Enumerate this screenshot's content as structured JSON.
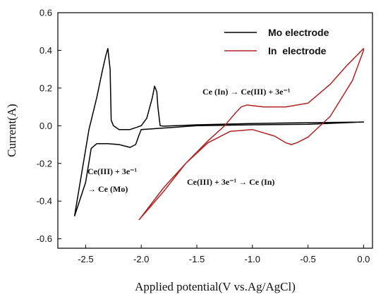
{
  "chart_data": {
    "type": "line",
    "xlabel": "Applied potential(V vs.Ag/AgCl)",
    "ylabel": "Current(A)",
    "xlim": [
      -2.75,
      0.08
    ],
    "ylim": [
      -0.65,
      0.6
    ],
    "xticks": [
      -2.5,
      -2.0,
      -1.5,
      -1.0,
      -0.5,
      0.0
    ],
    "xtick_labels": [
      "-2.5",
      "-2.0",
      "-1.5",
      "-1.0",
      "-0.5",
      "0.0"
    ],
    "yticks": [
      -0.6,
      -0.4,
      -0.2,
      0.0,
      0.2,
      0.4,
      0.6
    ],
    "ytick_labels": [
      "-0.6",
      "-0.4",
      "-0.2",
      "0.0",
      "0.2",
      "0.4",
      "0.6"
    ],
    "grid": false,
    "legend_position": "top-right",
    "series": [
      {
        "name": "Mo electrode",
        "color": "#000000",
        "x": [
          -2.6,
          -2.47,
          -2.4,
          -2.35,
          -2.32,
          -2.3,
          -2.28,
          -2.27,
          -2.25,
          -2.2,
          -2.1,
          -2.0,
          -1.95,
          -1.9,
          -1.88,
          -1.86,
          -1.85,
          -1.83,
          -1.8,
          -1.5,
          -1.0,
          -0.5,
          0.0,
          0.0,
          -0.5,
          -1.0,
          -1.5,
          -2.0,
          -2.02,
          -2.05,
          -2.1,
          -2.2,
          -2.3,
          -2.4,
          -2.45,
          -2.5,
          -2.6
        ],
        "y": [
          -0.48,
          -0.02,
          0.15,
          0.29,
          0.37,
          0.41,
          0.3,
          0.03,
          0.0,
          -0.02,
          -0.02,
          0.0,
          0.04,
          0.15,
          0.21,
          0.18,
          0.1,
          0.0,
          -0.002,
          0.005,
          0.012,
          0.016,
          0.02,
          0.02,
          0.008,
          0.005,
          0.0,
          -0.02,
          -0.05,
          -0.1,
          -0.115,
          -0.1,
          -0.095,
          -0.095,
          -0.12,
          -0.3,
          -0.48
        ]
      },
      {
        "name": "In  electrode",
        "color": "#b22222",
        "x": [
          -2.02,
          -1.8,
          -1.6,
          -1.4,
          -1.25,
          -1.15,
          -1.1,
          -1.05,
          -0.9,
          -0.7,
          -0.5,
          -0.3,
          -0.15,
          0.0,
          0.0,
          -0.1,
          -0.3,
          -0.5,
          -0.6,
          -0.65,
          -0.7,
          -0.8,
          -1.0,
          -1.2,
          -1.4,
          -1.6,
          -1.8,
          -2.02
        ],
        "y": [
          -0.5,
          -0.33,
          -0.2,
          -0.08,
          0.0,
          0.07,
          0.1,
          0.11,
          0.1,
          0.1,
          0.12,
          0.22,
          0.32,
          0.41,
          0.4,
          0.24,
          0.05,
          -0.06,
          -0.09,
          -0.1,
          -0.09,
          -0.055,
          -0.02,
          -0.03,
          -0.09,
          -0.2,
          -0.35,
          -0.5
        ]
      }
    ],
    "annotations": [
      {
        "id": "anno_in_ox",
        "text": "Ce (In)  →  Ce(III) + 3e⁻¹"
      },
      {
        "id": "anno_mo_red_1",
        "text": "Ce(III) + 3e⁻¹"
      },
      {
        "id": "anno_mo_red_2",
        "text": "→  Ce (Mo)"
      },
      {
        "id": "anno_in_red",
        "text": "Ce(III) + 3e⁻¹ →  Ce (In)"
      }
    ]
  }
}
